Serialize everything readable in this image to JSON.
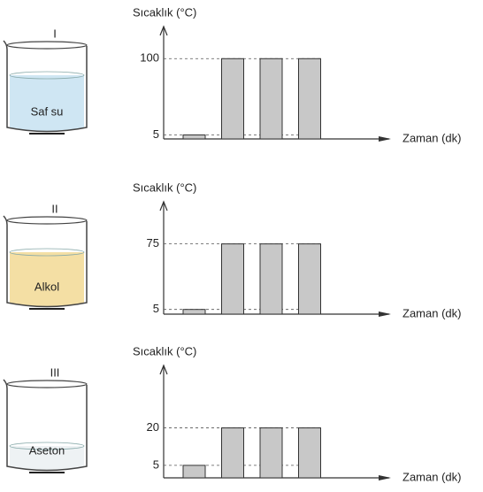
{
  "chart_data": [
    {
      "type": "bar",
      "beaker": "I",
      "liquid": "Saf su",
      "y_label": "Sıcaklık (°C)",
      "x_label": "Zaman (dk)",
      "categories": [
        null,
        null,
        null,
        null
      ],
      "values": [
        5,
        100,
        100,
        100
      ],
      "color": "#c8c8c8",
      "ylim": [
        0,
        140
      ],
      "yticks": [
        5,
        100
      ],
      "grid": true
    },
    {
      "type": "bar",
      "beaker": "II",
      "liquid": "Alkol",
      "y_label": "Sıcaklık (°C)",
      "x_label": "Zaman (dk)",
      "categories": [
        null,
        null,
        null,
        null
      ],
      "values": [
        5,
        75,
        75,
        75
      ],
      "color": "#c8c8c8",
      "ylim": [
        0,
        120
      ],
      "yticks": [
        5,
        75
      ],
      "grid": true
    },
    {
      "type": "bar",
      "beaker": "III",
      "liquid": "Aseton",
      "y_label": "Sıcaklık (°C)",
      "x_label": "Zaman (dk)",
      "categories": [
        null,
        null,
        null,
        null
      ],
      "values": [
        5,
        20,
        20,
        20
      ],
      "color": "#c8c8c8",
      "ylim": [
        0,
        45
      ],
      "yticks": [
        5,
        20
      ],
      "grid": true
    }
  ]
}
